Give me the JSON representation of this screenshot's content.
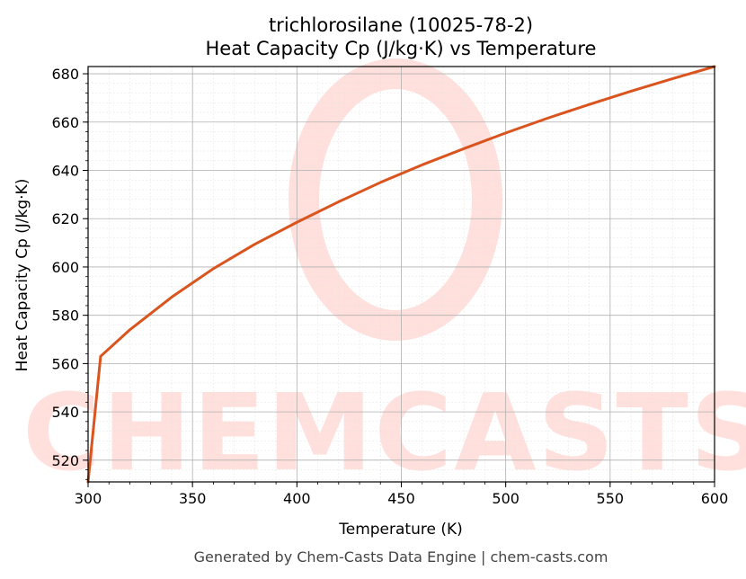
{
  "chart_data": {
    "type": "line",
    "title": "trichlorosilane (10025-78-2)",
    "subtitle": "Heat Capacity Cp (J/kg·K) vs Temperature",
    "xlabel": "Temperature (K)",
    "ylabel": "Heat Capacity Cp (J/kg·K)",
    "xlim": [
      300,
      600
    ],
    "ylim": [
      511,
      683
    ],
    "x_ticks": [
      300,
      350,
      400,
      450,
      500,
      550,
      600
    ],
    "y_ticks": [
      520,
      540,
      560,
      580,
      600,
      620,
      640,
      660,
      680
    ],
    "grid": true,
    "legend": "none",
    "colors": {
      "line": "#d9541e",
      "grid": "#b0b0b0",
      "watermark": "#ffe0dc"
    },
    "series": [
      {
        "x": [
          300,
          306,
          320,
          340,
          360,
          380,
          400,
          420,
          440,
          460,
          480,
          500,
          520,
          540,
          560,
          580,
          600
        ],
        "values": [
          511,
          563,
          574,
          587.5,
          599.3,
          609.5,
          618.5,
          627,
          635,
          642.3,
          649,
          655.5,
          661.6,
          667.3,
          672.8,
          678,
          683
        ]
      }
    ]
  },
  "watermark": {
    "text": "CHEMCASTS"
  },
  "footer": "Generated by Chem-Casts Data Engine | chem-casts.com"
}
